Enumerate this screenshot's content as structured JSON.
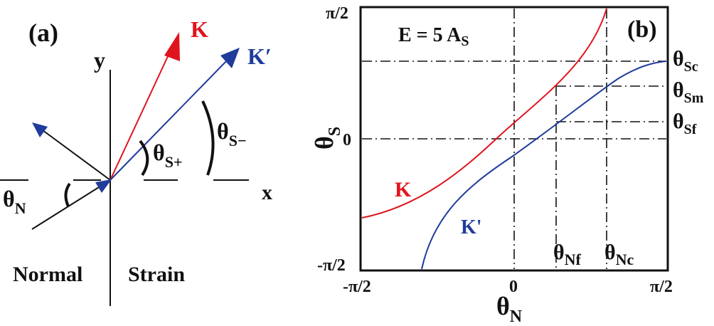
{
  "panel_a": {
    "tag": "(a)",
    "y_axis": "y",
    "x_axis": "x",
    "region_left": "Normal",
    "region_right": "Strain",
    "k_label": "K",
    "kp_label": "K′",
    "theta": "θ",
    "n_sub": "N",
    "s_plus_sub": "S+",
    "s_minus_sub": "S−",
    "colors": {
      "k": "#e0141e",
      "kp": "#1f3c9c",
      "black": "#111111"
    }
  },
  "panel_b": {
    "tag": "(b)",
    "energy_label": "E = 5 A",
    "energy_sub": "S",
    "curve_k": "K",
    "curve_kp": "K'",
    "ylabel": "θ",
    "ylabel_sub": "S",
    "xlabel": "θ",
    "xlabel_sub": "N",
    "tick_x": [
      "-π/2",
      "0",
      "π/2"
    ],
    "tick_y": [
      "-π/2",
      "0",
      "π/2"
    ],
    "theta_sc_sub": "Sc",
    "theta_sm_sub": "Sm",
    "theta_sf_sub": "Sf",
    "theta_nf_sub": "Nf",
    "theta_nc_sub": "Nc"
  },
  "chart_data": {
    "type": "line",
    "xlabel": "θN",
    "ylabel": "θS",
    "xlim": [
      -1.5708,
      1.5708
    ],
    "ylim": [
      -1.5708,
      1.5708
    ],
    "series": [
      {
        "name": "K",
        "color": "#e0141e",
        "x": [
          -1.5708,
          -1.2,
          -0.8,
          -0.4,
          0.0,
          0.4,
          0.8,
          1.0,
          1.12
        ],
        "y": [
          -1.05,
          -0.92,
          -0.68,
          -0.38,
          -0.05,
          0.35,
          0.85,
          1.25,
          1.5708
        ]
      },
      {
        "name": "K'",
        "color": "#1f3c9c",
        "x": [
          -1.12,
          -1.0,
          -0.8,
          -0.4,
          0.0,
          0.4,
          0.8,
          1.2,
          1.5708
        ],
        "y": [
          -1.5708,
          -1.22,
          -0.92,
          -0.52,
          -0.18,
          0.18,
          0.52,
          0.88,
          1.02
        ]
      }
    ],
    "reference_lines": {
      "theta_Sc": 1.02,
      "theta_Sm": 0.68,
      "theta_Sf": 0.22,
      "theta_Nf": 0.52,
      "theta_Nc": 1.12
    }
  }
}
